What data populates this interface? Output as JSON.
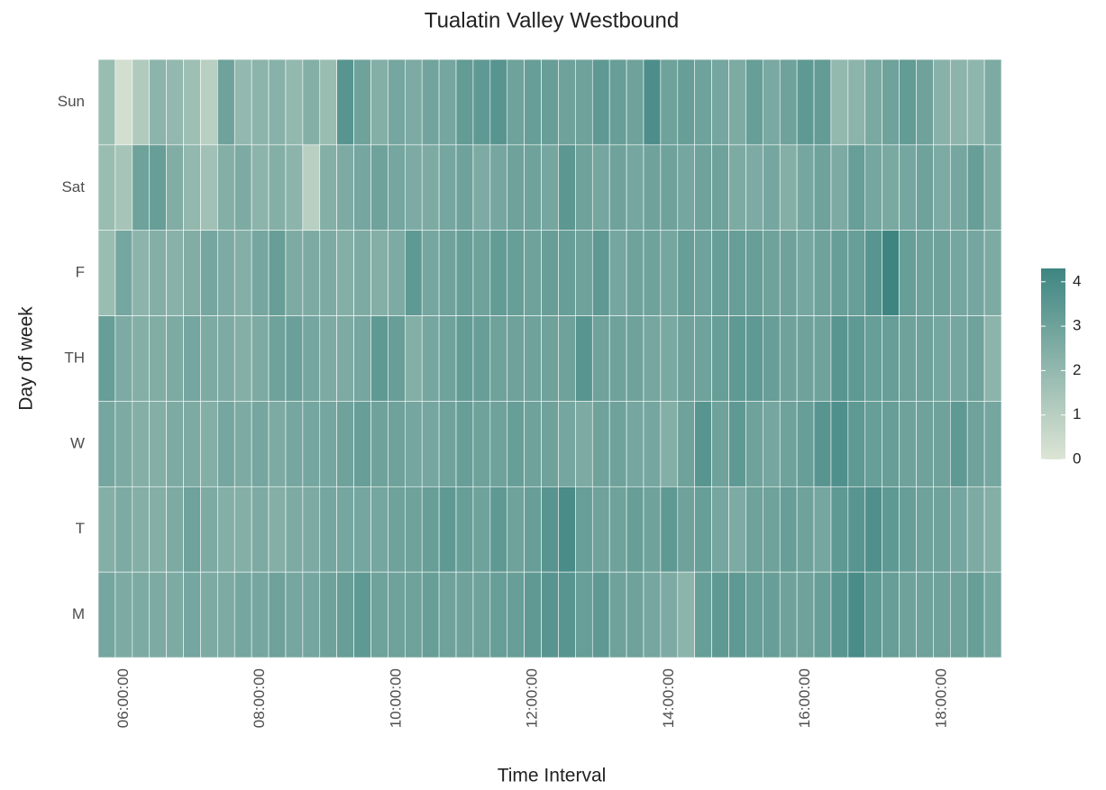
{
  "chart_data": {
    "type": "heatmap",
    "title": "Tualatin Valley Westbound",
    "x_label": "Time Interval",
    "y_label": "Day of week",
    "x": [
      null,
      "06:00:00",
      null,
      null,
      null,
      null,
      null,
      null,
      null,
      "08:00:00",
      null,
      null,
      null,
      null,
      null,
      null,
      null,
      "10:00:00",
      null,
      null,
      null,
      null,
      null,
      null,
      null,
      "12:00:00",
      null,
      null,
      null,
      null,
      null,
      null,
      null,
      "14:00:00",
      null,
      null,
      null,
      null,
      null,
      null,
      null,
      "16:00:00",
      null,
      null,
      null,
      null,
      null,
      null,
      null,
      "18:00:00",
      null,
      null,
      null
    ],
    "y": [
      "Sun",
      "Sat",
      "F",
      "TH",
      "W",
      "T",
      "M"
    ],
    "z": [
      [
        1.8,
        0.3,
        1.2,
        2.2,
        2.0,
        1.7,
        1.0,
        3.0,
        2.0,
        2.2,
        2.3,
        2.0,
        2.4,
        1.8,
        3.6,
        3.0,
        2.4,
        2.8,
        2.6,
        2.9,
        2.8,
        3.3,
        3.4,
        3.6,
        3.0,
        3.2,
        3.2,
        3.0,
        3.0,
        3.4,
        3.2,
        3.0,
        3.9,
        3.0,
        3.2,
        3.0,
        2.8,
        2.6,
        3.2,
        2.7,
        3.0,
        3.4,
        3.3,
        2.0,
        2.2,
        2.7,
        3.0,
        3.3,
        3.0,
        2.3,
        2.2,
        2.1,
        2.6
      ],
      [
        1.8,
        1.5,
        3.0,
        3.2,
        2.5,
        2.0,
        1.6,
        2.4,
        2.6,
        2.2,
        2.4,
        2.2,
        1.0,
        2.4,
        2.6,
        2.8,
        3.0,
        2.8,
        2.6,
        2.6,
        2.8,
        3.0,
        2.6,
        2.8,
        3.0,
        3.0,
        2.8,
        3.5,
        3.0,
        2.8,
        3.0,
        2.8,
        3.0,
        3.0,
        2.8,
        3.0,
        3.0,
        2.6,
        2.6,
        2.8,
        2.4,
        2.8,
        3.0,
        2.6,
        3.2,
        2.8,
        2.7,
        2.8,
        3.0,
        2.6,
        2.8,
        3.2,
        2.6
      ],
      [
        1.8,
        2.8,
        2.2,
        2.4,
        2.3,
        2.5,
        2.8,
        2.6,
        2.4,
        2.8,
        3.2,
        2.6,
        2.6,
        2.6,
        2.4,
        2.6,
        2.4,
        2.6,
        3.4,
        2.8,
        3.0,
        3.2,
        3.0,
        3.3,
        3.2,
        3.0,
        3.2,
        3.2,
        3.0,
        3.4,
        2.8,
        3.0,
        3.0,
        2.8,
        3.2,
        3.0,
        3.2,
        3.2,
        3.2,
        3.0,
        3.0,
        2.8,
        3.0,
        3.2,
        3.2,
        3.6,
        4.3,
        3.2,
        3.0,
        3.0,
        2.8,
        2.8,
        2.6
      ],
      [
        3.2,
        2.6,
        2.4,
        2.5,
        2.6,
        2.8,
        2.6,
        2.6,
        2.4,
        2.6,
        3.0,
        3.1,
        2.8,
        2.6,
        2.6,
        2.8,
        3.4,
        3.2,
        2.4,
        2.8,
        3.0,
        3.3,
        3.2,
        3.0,
        3.0,
        3.0,
        3.0,
        3.0,
        3.6,
        3.0,
        3.0,
        3.0,
        2.8,
        2.7,
        3.0,
        3.0,
        3.2,
        3.4,
        3.4,
        3.2,
        3.0,
        3.0,
        3.0,
        3.6,
        3.4,
        3.2,
        3.2,
        3.0,
        3.0,
        2.8,
        2.8,
        3.0,
        2.2
      ],
      [
        2.8,
        2.6,
        2.4,
        2.4,
        2.6,
        2.6,
        2.4,
        2.8,
        2.6,
        2.8,
        2.6,
        2.8,
        2.8,
        2.8,
        3.0,
        3.2,
        3.0,
        3.0,
        2.8,
        2.8,
        3.0,
        3.2,
        3.0,
        3.0,
        3.2,
        3.0,
        3.0,
        2.8,
        2.6,
        3.0,
        3.0,
        2.8,
        2.8,
        2.4,
        3.0,
        3.6,
        3.0,
        3.4,
        3.0,
        2.8,
        3.0,
        3.2,
        3.6,
        3.8,
        3.4,
        3.2,
        3.2,
        3.0,
        3.0,
        3.0,
        3.4,
        3.0,
        2.8
      ],
      [
        2.4,
        2.6,
        2.4,
        2.4,
        2.6,
        3.0,
        2.6,
        2.4,
        2.4,
        2.6,
        2.4,
        2.6,
        2.6,
        2.8,
        2.8,
        2.8,
        2.8,
        3.0,
        3.0,
        3.2,
        3.4,
        3.2,
        3.0,
        3.4,
        3.0,
        3.2,
        3.6,
        4.0,
        3.2,
        3.0,
        3.0,
        3.2,
        3.0,
        3.4,
        3.0,
        3.2,
        2.8,
        2.6,
        3.0,
        3.0,
        3.2,
        3.0,
        2.8,
        3.4,
        3.6,
        3.8,
        3.4,
        3.2,
        3.0,
        3.0,
        2.8,
        2.6,
        2.4
      ],
      [
        2.8,
        2.6,
        2.6,
        2.6,
        2.6,
        2.8,
        2.6,
        2.6,
        2.8,
        2.8,
        3.0,
        2.8,
        2.8,
        3.0,
        3.2,
        3.4,
        3.0,
        3.0,
        3.0,
        3.2,
        3.0,
        3.0,
        3.0,
        3.2,
        3.2,
        3.4,
        3.6,
        3.6,
        3.2,
        3.4,
        3.0,
        3.0,
        2.8,
        2.6,
        2.2,
        3.2,
        3.4,
        3.4,
        3.2,
        3.2,
        3.0,
        3.0,
        3.2,
        3.6,
        4.0,
        3.4,
        3.2,
        3.0,
        3.0,
        3.0,
        3.0,
        3.2,
        2.8
      ]
    ],
    "colors": [
      "#dde5d5",
      "#3e8582"
    ],
    "zlim": [
      0,
      4.3
    ],
    "zticks": [
      0,
      1,
      2,
      3,
      4
    ]
  }
}
